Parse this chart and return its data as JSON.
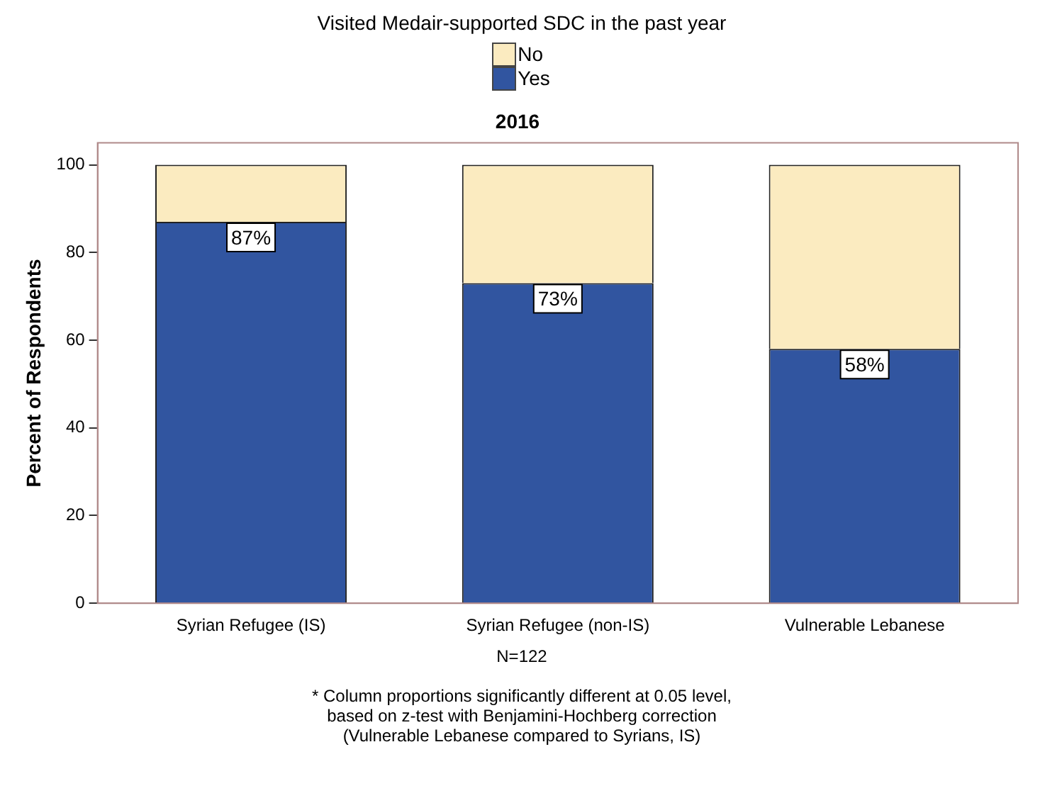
{
  "chart_data": {
    "type": "bar",
    "title": "2016",
    "legend_title": "Visited Medair-supported SDC in the past year",
    "ylabel": "Percent of Respondents",
    "categories": [
      "Syrian Refugee (IS)",
      "Syrian Refugee (non-IS)",
      "Vulnerable Lebanese"
    ],
    "series": [
      {
        "name": "Yes",
        "color": "#3155a0",
        "values": [
          87,
          73,
          58
        ],
        "value_labels": [
          "87%",
          "73%",
          "58%"
        ]
      },
      {
        "name": "No",
        "color": "#fbebc0",
        "values": [
          13,
          27,
          42
        ]
      }
    ],
    "stacked": true,
    "ylim": [
      0,
      105
    ],
    "yticks": [
      0,
      20,
      40,
      60,
      80,
      100
    ],
    "grid": false,
    "legend": "top",
    "annotations": [
      "N=122",
      "* Column proportions significantly different at 0.05 level,\nbased on z-test with Benjamini-Hochberg correction\n(Vulnerable Lebanese compared to Syrians, IS)"
    ]
  }
}
